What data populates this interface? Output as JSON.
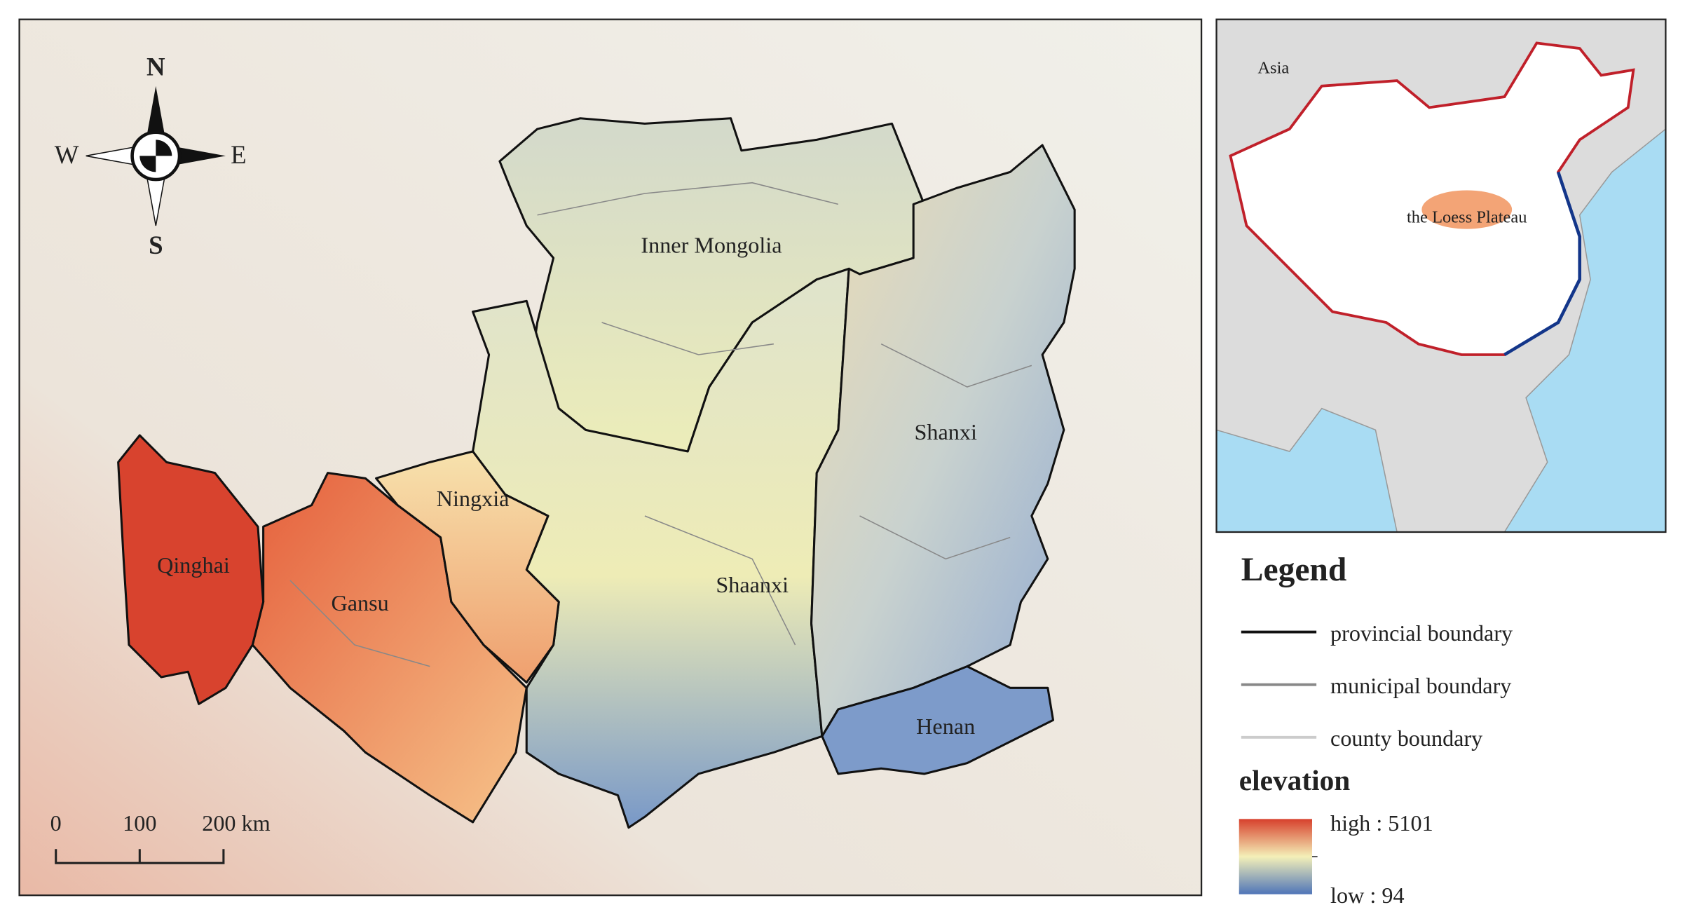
{
  "map": {
    "compass": {
      "n": "N",
      "s": "S",
      "w": "W",
      "e": "E"
    },
    "regions": [
      "Inner Mongolia",
      "Ningxia",
      "Qinghai",
      "Gansu",
      "Shaanxi",
      "Shanxi",
      "Henan"
    ],
    "scale_bar": [
      "0",
      "100",
      "200 km"
    ]
  },
  "inset": {
    "labels": [
      "Asia",
      "the Loess Plateau"
    ]
  },
  "legend": {
    "title": "Legend",
    "items": [
      "provincial boundary",
      "municipal boundary",
      "county boundary"
    ],
    "elevation": {
      "title": "elevation",
      "high": "high : 5101",
      "low": "low : 94"
    }
  }
}
